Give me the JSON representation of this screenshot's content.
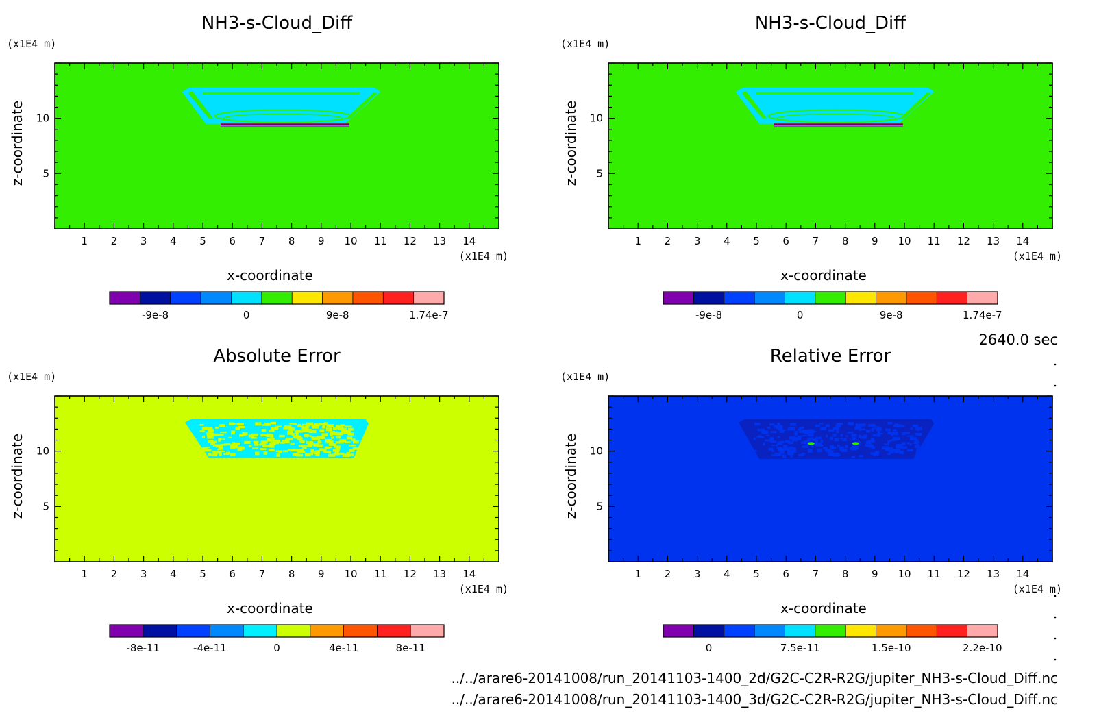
{
  "time_label": "2640.0 sec",
  "footer": {
    "line1": "../../arare6-20141008/run_20141103-1400_2d/G2C-C2R-R2G/jupiter_NH3-s-Cloud_Diff.nc",
    "line2": "../../arare6-20141008/run_20141103-1400_3d/G2C-C2R-R2G/jupiter_NH3-s-Cloud_Diff.nc"
  },
  "chart_data": [
    {
      "type": "heatmap",
      "title": "NH3-s-Cloud_Diff",
      "xlabel": "x-coordinate",
      "ylabel": "z-coordinate",
      "x_unit": "(x1E4 m)",
      "y_unit": "(x1E4 m)",
      "xlim": [
        0,
        15
      ],
      "ylim": [
        0,
        15
      ],
      "x_ticks": [
        1,
        2,
        3,
        4,
        5,
        6,
        7,
        8,
        9,
        10,
        11,
        12,
        13,
        14
      ],
      "y_ticks": [
        5,
        10
      ],
      "background_color": "#33ee00",
      "colorbar": {
        "colors": [
          "#8000b0",
          "#0010a0",
          "#0040ff",
          "#0088ff",
          "#00e0ff",
          "#33ee00",
          "#ffe600",
          "#ff9900",
          "#ff5500",
          "#ff2020",
          "#ffaaaa"
        ],
        "labels": [
          "-9e-8",
          "0",
          "9e-8",
          "1.74e-7"
        ],
        "label_positions": [
          1.5,
          4.5,
          7.5,
          10.5
        ]
      },
      "pattern": "cloud"
    },
    {
      "type": "heatmap",
      "title": "NH3-s-Cloud_Diff",
      "xlabel": "x-coordinate",
      "ylabel": "z-coordinate",
      "x_unit": "(x1E4 m)",
      "y_unit": "(x1E4 m)",
      "xlim": [
        0,
        15
      ],
      "ylim": [
        0,
        15
      ],
      "x_ticks": [
        1,
        2,
        3,
        4,
        5,
        6,
        7,
        8,
        9,
        10,
        11,
        12,
        13,
        14
      ],
      "y_ticks": [
        5,
        10
      ],
      "background_color": "#33ee00",
      "colorbar": {
        "colors": [
          "#8000b0",
          "#0010a0",
          "#0040ff",
          "#0088ff",
          "#00e0ff",
          "#33ee00",
          "#ffe600",
          "#ff9900",
          "#ff5500",
          "#ff2020",
          "#ffaaaa"
        ],
        "labels": [
          "-9e-8",
          "0",
          "9e-8",
          "1.74e-7"
        ],
        "label_positions": [
          1.5,
          4.5,
          7.5,
          10.5
        ]
      },
      "pattern": "cloud"
    },
    {
      "type": "heatmap",
      "title": "Absolute Error",
      "xlabel": "x-coordinate",
      "ylabel": "z-coordinate",
      "x_unit": "(x1E4 m)",
      "y_unit": "(x1E4 m)",
      "xlim": [
        0,
        15
      ],
      "ylim": [
        0,
        15
      ],
      "x_ticks": [
        1,
        2,
        3,
        4,
        5,
        6,
        7,
        8,
        9,
        10,
        11,
        12,
        13,
        14
      ],
      "y_ticks": [
        5,
        10
      ],
      "background_color": "#ccff00",
      "colorbar": {
        "colors": [
          "#8000b0",
          "#0010a0",
          "#0040ff",
          "#0088ff",
          "#00f0ff",
          "#ccff00",
          "#ff9900",
          "#ff5500",
          "#ff2020",
          "#ffaaaa"
        ],
        "labels": [
          "-8e-11",
          "-4e-11",
          "0",
          "4e-11",
          "8e-11"
        ],
        "label_positions": [
          1,
          3,
          5,
          7,
          9
        ]
      },
      "pattern": "abs_error"
    },
    {
      "type": "heatmap",
      "title": "Relative Error",
      "xlabel": "x-coordinate",
      "ylabel": "z-coordinate",
      "x_unit": "(x1E4 m)",
      "y_unit": "(x1E4 m)",
      "xlim": [
        0,
        15
      ],
      "ylim": [
        0,
        15
      ],
      "x_ticks": [
        1,
        2,
        3,
        4,
        5,
        6,
        7,
        8,
        9,
        10,
        11,
        12,
        13,
        14
      ],
      "y_ticks": [
        5,
        10
      ],
      "background_color": "#0033ee",
      "colorbar": {
        "colors": [
          "#8000b0",
          "#0010a0",
          "#0040ff",
          "#0088ff",
          "#00e0ff",
          "#33ee00",
          "#ffe600",
          "#ff9900",
          "#ff5500",
          "#ff2020",
          "#ffaaaa"
        ],
        "labels": [
          "0",
          "7.5e-11",
          "1.5e-10",
          "2.2e-10"
        ],
        "label_positions": [
          1.5,
          4.5,
          7.5,
          10.5
        ]
      },
      "pattern": "rel_error"
    }
  ]
}
